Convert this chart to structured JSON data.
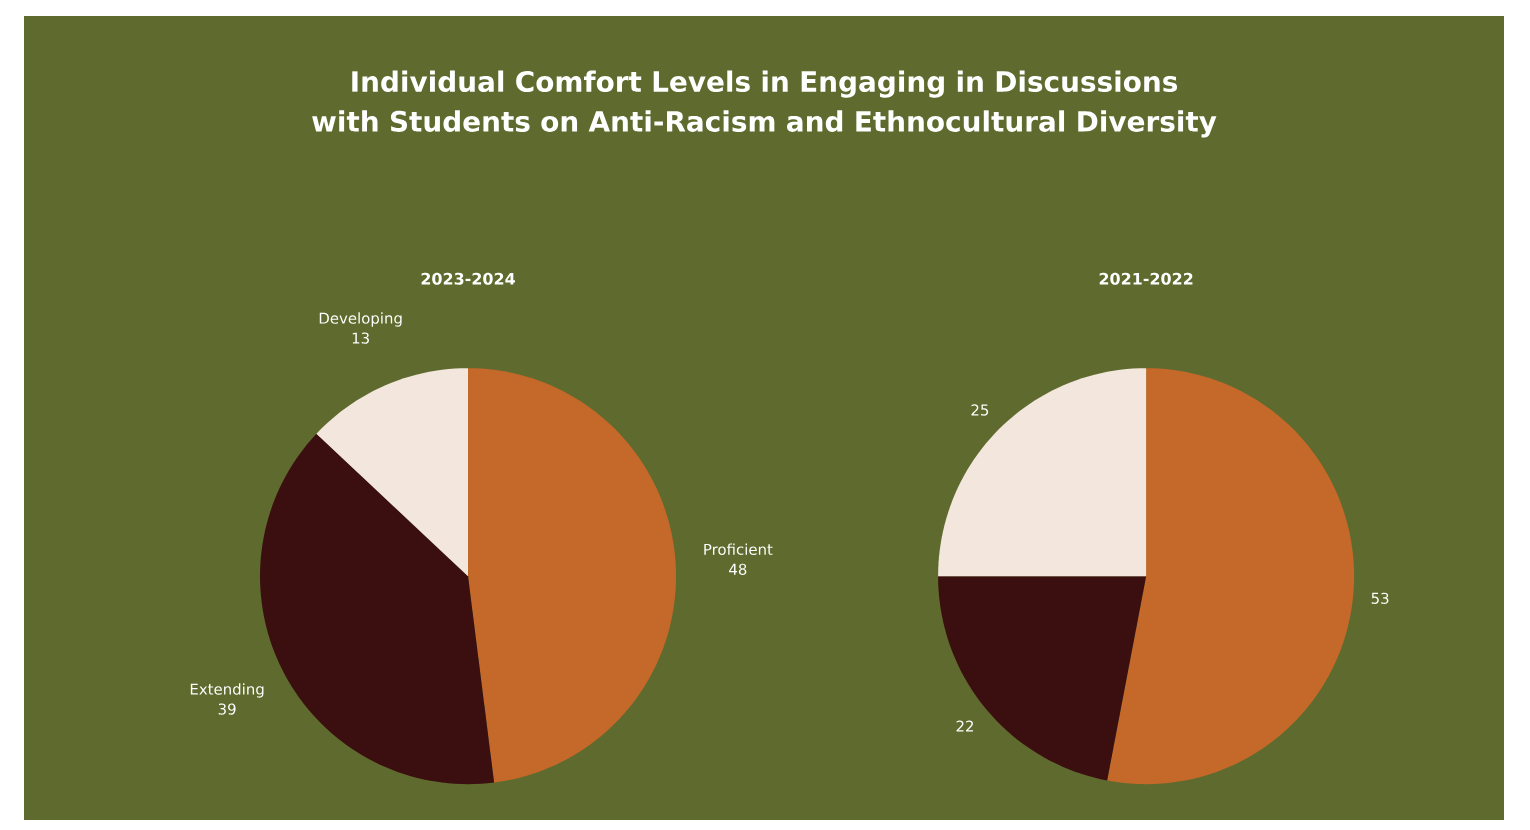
{
  "chart_data": [
    {
      "type": "pie",
      "title": "Individual Comfort Levels in Engaging in Discussions with Students on Anti-Racism and Ethnocultural Diversity",
      "subtitle": "2023-2024",
      "categories": [
        "Proficient",
        "Extending",
        "Developing"
      ],
      "values": [
        48,
        39,
        13
      ],
      "colors": [
        "#c4692a",
        "#3b0e10",
        "#f3e6dc"
      ],
      "data_labels": true
    },
    {
      "type": "pie",
      "subtitle": "2021-2022",
      "categories": [
        null,
        null,
        null
      ],
      "values": [
        53,
        22,
        25
      ],
      "colors": [
        "#c4692a",
        "#3b0e10",
        "#f3e6dc"
      ],
      "data_labels": true
    }
  ]
}
